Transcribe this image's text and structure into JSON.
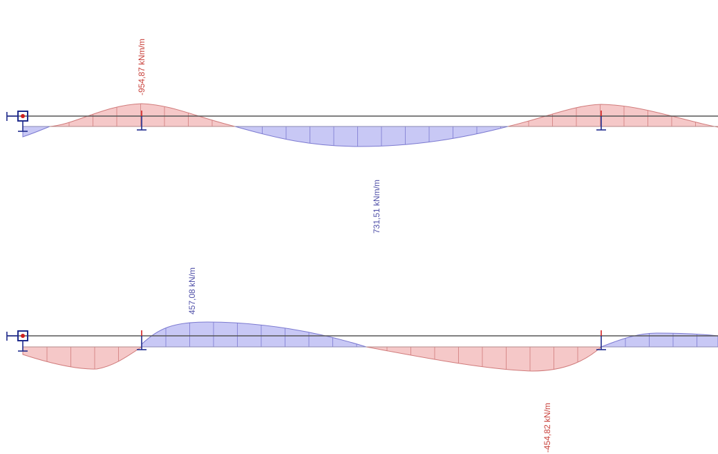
{
  "colors": {
    "positive_fill": "#c8c8f5",
    "positive_stroke": "#7a78d0",
    "negative_fill": "#f5c8c8",
    "negative_stroke": "#d07a7a",
    "beam": "#555555",
    "support": "#1e2a8c",
    "node_marker": "#d02020",
    "label_positive": "#5050a8",
    "label_negative": "#c8403a"
  },
  "diagrams": [
    {
      "name": "moment-diagram",
      "labels": {
        "min": "-954,87 kNm/m",
        "max": "731,51 kNm/m"
      }
    },
    {
      "name": "shear-diagram",
      "labels": {
        "max": "457,08 kN/m",
        "min": "-454,82 kN/m"
      }
    }
  ]
}
